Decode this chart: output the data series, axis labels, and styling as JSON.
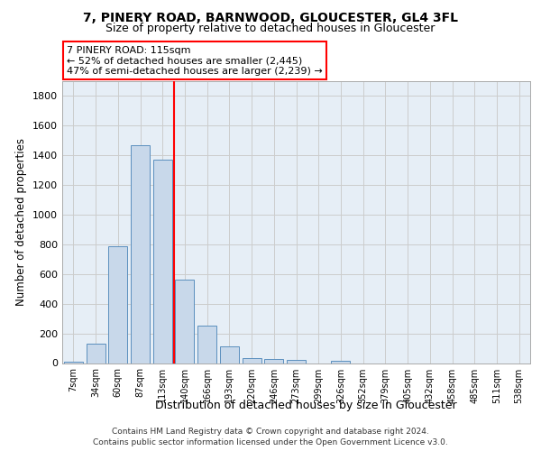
{
  "title1": "7, PINERY ROAD, BARNWOOD, GLOUCESTER, GL4 3FL",
  "title2": "Size of property relative to detached houses in Gloucester",
  "xlabel": "Distribution of detached houses by size in Gloucester",
  "ylabel": "Number of detached properties",
  "footer1": "Contains HM Land Registry data © Crown copyright and database right 2024.",
  "footer2": "Contains public sector information licensed under the Open Government Licence v3.0.",
  "bar_labels": [
    "7sqm",
    "34sqm",
    "60sqm",
    "87sqm",
    "113sqm",
    "140sqm",
    "166sqm",
    "193sqm",
    "220sqm",
    "246sqm",
    "273sqm",
    "299sqm",
    "326sqm",
    "352sqm",
    "379sqm",
    "405sqm",
    "432sqm",
    "458sqm",
    "485sqm",
    "511sqm",
    "538sqm"
  ],
  "bar_values": [
    10,
    130,
    790,
    1470,
    1370,
    560,
    250,
    110,
    35,
    30,
    20,
    0,
    15,
    0,
    0,
    0,
    0,
    0,
    0,
    0,
    0
  ],
  "bar_color": "#c8d8ea",
  "bar_edge_color": "#5b8fbe",
  "grid_color": "#cccccc",
  "plot_bg_color": "#e6eef6",
  "red_line_bin_index": 4,
  "annotation_line1": "7 PINERY ROAD: 115sqm",
  "annotation_line2": "← 52% of detached houses are smaller (2,445)",
  "annotation_line3": "47% of semi-detached houses are larger (2,239) →",
  "ylim_max": 1900,
  "yticks": [
    0,
    200,
    400,
    600,
    800,
    1000,
    1200,
    1400,
    1600,
    1800
  ]
}
